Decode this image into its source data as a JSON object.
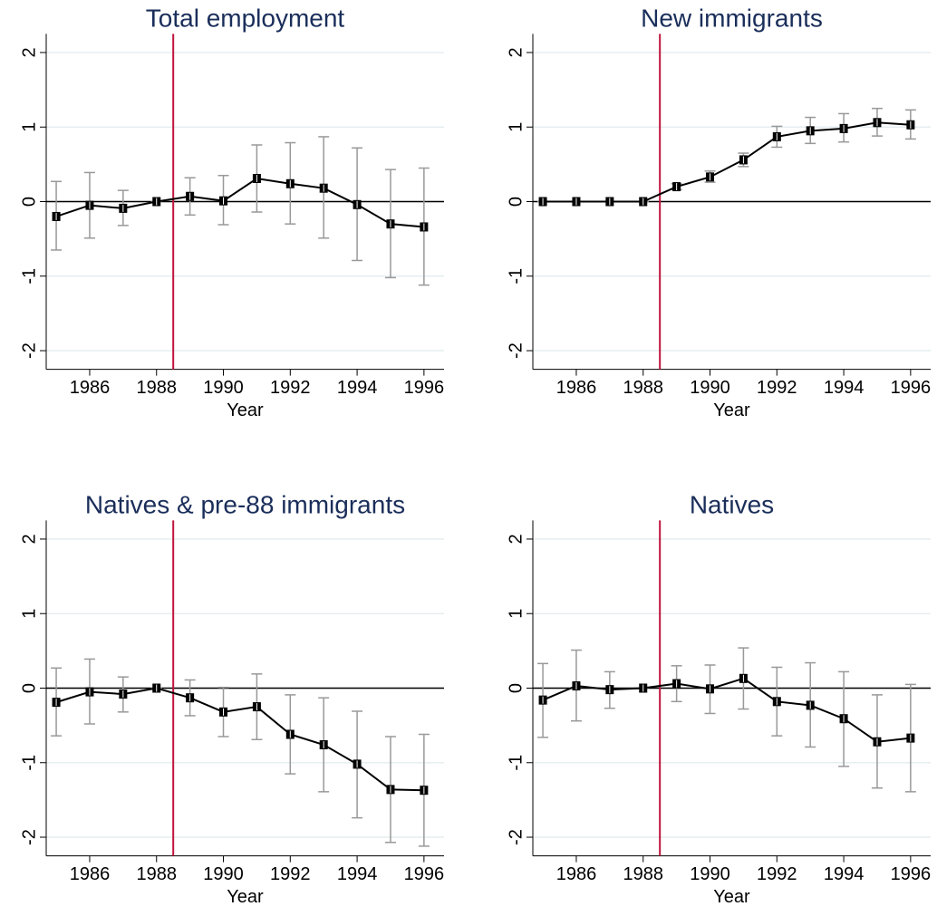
{
  "chart_data": [
    {
      "type": "line",
      "title": "Total employment",
      "xlabel": "Year",
      "x": [
        1985,
        1986,
        1987,
        1988,
        1989,
        1990,
        1991,
        1992,
        1993,
        1994,
        1995,
        1996
      ],
      "values": [
        -0.2,
        -0.05,
        -0.09,
        0,
        0.07,
        0.01,
        0.31,
        0.24,
        0.18,
        -0.04,
        -0.3,
        -0.34
      ],
      "ci_lower": [
        -0.65,
        -0.49,
        -0.32,
        0,
        -0.18,
        -0.31,
        -0.14,
        -0.3,
        -0.49,
        -0.79,
        -1.02,
        -1.12
      ],
      "ci_upper": [
        0.27,
        0.39,
        0.15,
        0,
        0.32,
        0.35,
        0.76,
        0.79,
        0.87,
        0.72,
        0.43,
        0.45
      ],
      "color": "#000000",
      "ci_color": "#999999",
      "xlim": [
        1984.7,
        1996.6
      ],
      "xticks": [
        1986,
        1988,
        1990,
        1992,
        1994,
        1996
      ],
      "ylim": [
        -2.25,
        2.25
      ],
      "yticks": [
        -2,
        -1,
        0,
        1,
        2
      ],
      "grid": true,
      "hline": 0,
      "vline": 1988.5,
      "vline_color": "#c0143c"
    },
    {
      "type": "line",
      "title": "New immigrants",
      "xlabel": "Year",
      "x": [
        1985,
        1986,
        1987,
        1988,
        1989,
        1990,
        1991,
        1992,
        1993,
        1994,
        1995,
        1996
      ],
      "values": [
        0,
        0,
        0,
        0,
        0.2,
        0.33,
        0.56,
        0.87,
        0.95,
        0.98,
        1.06,
        1.03
      ],
      "ci_lower": [
        0,
        0,
        0,
        0,
        0.16,
        0.26,
        0.47,
        0.73,
        0.78,
        0.8,
        0.88,
        0.84
      ],
      "ci_upper": [
        0,
        0,
        0,
        0,
        0.24,
        0.41,
        0.65,
        1.01,
        1.13,
        1.18,
        1.25,
        1.23
      ],
      "color": "#000000",
      "ci_color": "#999999",
      "xlim": [
        1984.7,
        1996.6
      ],
      "xticks": [
        1986,
        1988,
        1990,
        1992,
        1994,
        1996
      ],
      "ylim": [
        -2.25,
        2.25
      ],
      "yticks": [
        -2,
        -1,
        0,
        1,
        2
      ],
      "grid": true,
      "hline": 0,
      "vline": 1988.5,
      "vline_color": "#c0143c"
    },
    {
      "type": "line",
      "title": "Natives & pre-88 immigrants",
      "xlabel": "Year",
      "x": [
        1985,
        1986,
        1987,
        1988,
        1989,
        1990,
        1991,
        1992,
        1993,
        1994,
        1995,
        1996
      ],
      "values": [
        -0.19,
        -0.05,
        -0.08,
        0,
        -0.13,
        -0.32,
        -0.25,
        -0.62,
        -0.76,
        -1.02,
        -1.36,
        -1.37
      ],
      "ci_lower": [
        -0.64,
        -0.48,
        -0.32,
        0,
        -0.37,
        -0.65,
        -0.69,
        -1.15,
        -1.39,
        -1.74,
        -2.07,
        -2.12
      ],
      "ci_upper": [
        0.27,
        0.39,
        0.15,
        0,
        0.11,
        0.01,
        0.19,
        -0.09,
        -0.13,
        -0.31,
        -0.65,
        -0.62
      ],
      "color": "#000000",
      "ci_color": "#999999",
      "xlim": [
        1984.7,
        1996.6
      ],
      "xticks": [
        1986,
        1988,
        1990,
        1992,
        1994,
        1996
      ],
      "ylim": [
        -2.25,
        2.25
      ],
      "yticks": [
        -2,
        -1,
        0,
        1,
        2
      ],
      "grid": true,
      "hline": 0,
      "vline": 1988.5,
      "vline_color": "#c0143c"
    },
    {
      "type": "line",
      "title": "Natives",
      "xlabel": "Year",
      "x": [
        1985,
        1986,
        1987,
        1988,
        1989,
        1990,
        1991,
        1992,
        1993,
        1994,
        1995,
        1996
      ],
      "values": [
        -0.16,
        0.03,
        -0.02,
        0,
        0.06,
        -0.01,
        0.13,
        -0.18,
        -0.23,
        -0.41,
        -0.72,
        -0.67
      ],
      "ci_lower": [
        -0.66,
        -0.44,
        -0.27,
        0,
        -0.18,
        -0.34,
        -0.28,
        -0.64,
        -0.79,
        -1.05,
        -1.34,
        -1.39
      ],
      "ci_upper": [
        0.33,
        0.51,
        0.22,
        0,
        0.3,
        0.31,
        0.54,
        0.28,
        0.34,
        0.22,
        -0.09,
        0.05
      ],
      "color": "#000000",
      "ci_color": "#999999",
      "xlim": [
        1984.7,
        1996.6
      ],
      "xticks": [
        1986,
        1988,
        1990,
        1992,
        1994,
        1996
      ],
      "ylim": [
        -2.25,
        2.25
      ],
      "yticks": [
        -2,
        -1,
        0,
        1,
        2
      ],
      "grid": true,
      "hline": 0,
      "vline": 1988.5,
      "vline_color": "#c0143c"
    }
  ]
}
